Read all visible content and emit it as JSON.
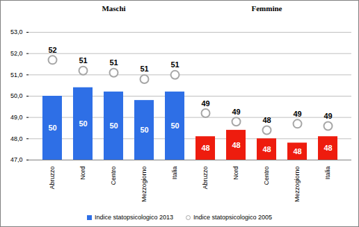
{
  "chart_data": {
    "type": "bar",
    "groups": [
      {
        "name": "Maschi",
        "categories": [
          "Abruzzo",
          "Nord",
          "Centro",
          "Mezzogiorno",
          "Italia"
        ]
      },
      {
        "name": "Femmine",
        "categories": [
          "Abruzzo",
          "Nord",
          "Centro",
          "Mezzogiorno",
          "Italia"
        ]
      }
    ],
    "series": [
      {
        "name": "Indice statopsicologico 2013",
        "type": "bar",
        "color": "#2e6fe6",
        "colors": [
          "#2e6fe6",
          "#2e6fe6",
          "#2e6fe6",
          "#2e6fe6",
          "#2e6fe6",
          "#ee1c0e",
          "#ee1c0e",
          "#ee1c0e",
          "#ee1c0e",
          "#ee1c0e"
        ],
        "values": [
          50.0,
          50.4,
          50.2,
          49.8,
          50.2,
          48.1,
          48.4,
          48.0,
          47.8,
          48.1
        ],
        "value_labels": [
          "50",
          "50",
          "50",
          "50",
          "50",
          "48",
          "48",
          "48",
          "48",
          "48"
        ]
      },
      {
        "name": "Indice statopsicologico 2005",
        "type": "scatter",
        "marker": "circle",
        "color": "#a6a6a6",
        "values": [
          51.7,
          51.2,
          51.1,
          50.8,
          51.0,
          49.2,
          48.8,
          48.4,
          48.7,
          48.6
        ],
        "value_labels": [
          "52",
          "51",
          "51",
          "51",
          "51",
          "49",
          "49",
          "48",
          "49",
          "49"
        ]
      }
    ],
    "ylim": [
      47,
      53
    ],
    "yticks": [
      {
        "value": 47,
        "label": "47,0"
      },
      {
        "value": 48,
        "label": "48,0"
      },
      {
        "value": 49,
        "label": "49,0"
      },
      {
        "value": 50,
        "label": "50,0"
      },
      {
        "value": 51,
        "label": "51,0"
      },
      {
        "value": 52,
        "label": "52,0"
      },
      {
        "value": 53,
        "label": "53,0"
      }
    ],
    "grid": true,
    "data_labels": true,
    "legend": "bottom"
  }
}
